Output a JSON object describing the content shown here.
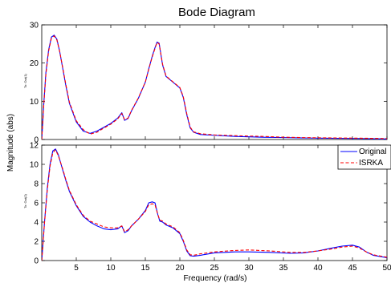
{
  "chart_data": {
    "type": "line",
    "title": "Bode Diagram",
    "xlabel": "Frequency  (rad/s)",
    "ylabel": "Magnitude (abs)",
    "xlim": [
      0,
      50
    ],
    "x_ticks": [
      "5",
      "10",
      "15",
      "20",
      "25",
      "30",
      "35",
      "40",
      "45",
      "50"
    ],
    "grid": false,
    "legend_position": "top-right of lower panel",
    "legend": [
      {
        "name": "Original",
        "color": "#0000ff",
        "style": "solid"
      },
      {
        "name": "ISRKA",
        "color": "#ff0000",
        "style": "dashed"
      }
    ],
    "panels": [
      {
        "panel_label": "To: Out(1)",
        "ylim": [
          0,
          30
        ],
        "y_ticks": [
          "0",
          "10",
          "20",
          "30"
        ],
        "series": [
          {
            "name": "Original",
            "x": [
              0,
              0.3,
              0.6,
              1.0,
              1.4,
              1.8,
              2.2,
              2.6,
              3.0,
              3.5,
              4.0,
              5.0,
              6.0,
              7.0,
              8.0,
              9.0,
              10.0,
              11.0,
              11.6,
              12.0,
              12.5,
              13.0,
              14.0,
              15.0,
              15.5,
              16.0,
              16.4,
              16.7,
              17.0,
              17.5,
              18.0,
              19.0,
              20.0,
              20.5,
              21.0,
              21.5,
              22.0,
              23.0,
              25.0,
              28.0,
              30.0,
              32.0,
              35.0,
              38.0,
              40.0,
              43.0,
              46.0,
              48.0,
              50.0
            ],
            "y": [
              0,
              9.5,
              17.5,
              23.5,
              26.8,
              27.3,
              26.2,
              23.0,
              19.0,
              14.0,
              9.5,
              4.6,
              2.2,
              1.6,
              2.2,
              3.2,
              4.2,
              5.6,
              7.0,
              5.0,
              5.5,
              7.5,
              10.8,
              15.0,
              18.5,
              21.8,
              24.0,
              25.5,
              25.2,
              19.5,
              16.5,
              15.0,
              13.5,
              11.0,
              6.5,
              3.0,
              1.9,
              1.3,
              1.1,
              0.8,
              0.7,
              0.6,
              0.5,
              0.4,
              0.35,
              0.3,
              0.25,
              0.2,
              0.15
            ]
          },
          {
            "name": "ISRKA",
            "x": [
              0,
              0.3,
              0.6,
              1.0,
              1.4,
              1.8,
              2.2,
              2.6,
              3.0,
              3.5,
              4.0,
              5.0,
              6.0,
              7.0,
              8.0,
              9.0,
              10.0,
              11.0,
              11.6,
              12.0,
              12.5,
              13.0,
              14.0,
              15.0,
              15.5,
              16.0,
              16.4,
              16.7,
              17.0,
              17.5,
              18.0,
              19.0,
              20.0,
              20.5,
              21.0,
              21.5,
              22.0,
              23.0,
              25.0,
              28.0,
              30.0,
              32.0,
              35.0,
              38.0,
              40.0,
              43.0,
              46.0,
              48.0,
              50.0
            ],
            "y": [
              0,
              9.2,
              17.0,
              23.2,
              26.5,
              27.1,
              26.0,
              23.0,
              19.2,
              14.3,
              9.8,
              4.9,
              2.6,
              1.4,
              1.9,
              3.0,
              4.0,
              5.4,
              6.8,
              5.2,
              5.6,
              7.6,
              10.9,
              15.0,
              18.4,
              21.6,
              23.8,
              25.4,
              25.0,
              19.7,
              16.6,
              15.1,
              13.6,
              11.2,
              6.8,
              3.2,
              2.0,
              1.5,
              1.2,
              1.0,
              0.9,
              0.8,
              0.6,
              0.5,
              0.45,
              0.4,
              0.35,
              0.3,
              0.25
            ]
          }
        ]
      },
      {
        "panel_label": "To: Out(2)",
        "ylim": [
          0,
          12
        ],
        "y_ticks": [
          "0",
          "2",
          "4",
          "6",
          "8",
          "10",
          "12"
        ],
        "series": [
          {
            "name": "Original",
            "x": [
              0,
              0.4,
              0.8,
              1.2,
              1.6,
              2.0,
              2.4,
              3.0,
              3.5,
              4.0,
              5.0,
              6.0,
              7.0,
              8.0,
              9.0,
              10.0,
              11.0,
              11.6,
              12.0,
              12.5,
              13.0,
              14.0,
              15.0,
              15.5,
              16.0,
              16.4,
              16.8,
              17.1,
              17.5,
              18.0,
              19.0,
              20.0,
              20.5,
              21.0,
              21.5,
              22.0,
              23.0,
              25.0,
              28.0,
              30.0,
              33.0,
              36.0,
              38.0,
              40.0,
              42.0,
              43.5,
              45.0,
              46.0,
              47.0,
              48.0,
              50.0
            ],
            "y": [
              0,
              4.0,
              7.5,
              10.0,
              11.4,
              11.6,
              11.0,
              9.5,
              8.3,
              7.2,
              5.7,
              4.6,
              4.0,
              3.6,
              3.3,
              3.2,
              3.3,
              3.6,
              2.9,
              3.1,
              3.6,
              4.3,
              5.2,
              6.0,
              6.1,
              6.0,
              4.8,
              4.1,
              4.0,
              3.7,
              3.4,
              2.8,
              2.0,
              1.0,
              0.5,
              0.45,
              0.55,
              0.8,
              0.9,
              0.9,
              0.85,
              0.75,
              0.8,
              1.0,
              1.3,
              1.5,
              1.6,
              1.4,
              0.9,
              0.55,
              0.3
            ]
          },
          {
            "name": "ISRKA",
            "x": [
              0,
              0.4,
              0.8,
              1.2,
              1.6,
              2.0,
              2.4,
              3.0,
              3.5,
              4.0,
              5.0,
              6.0,
              7.0,
              8.0,
              9.0,
              10.0,
              11.0,
              11.6,
              12.0,
              12.5,
              13.0,
              14.0,
              15.0,
              15.5,
              16.0,
              16.4,
              16.8,
              17.1,
              17.5,
              18.0,
              19.0,
              20.0,
              20.5,
              21.0,
              21.5,
              22.0,
              23.0,
              25.0,
              28.0,
              30.0,
              33.0,
              36.0,
              38.0,
              40.0,
              42.0,
              43.5,
              45.0,
              46.0,
              47.0,
              48.0,
              50.0
            ],
            "y": [
              0,
              3.9,
              7.3,
              9.8,
              11.2,
              11.5,
              10.9,
              9.6,
              8.4,
              7.3,
              5.8,
              4.7,
              4.1,
              3.8,
              3.5,
              3.4,
              3.4,
              3.6,
              3.0,
              3.2,
              3.6,
              4.3,
              5.1,
              5.8,
              5.9,
              5.8,
              4.8,
              4.2,
              4.1,
              3.8,
              3.5,
              2.9,
              2.1,
              1.1,
              0.6,
              0.55,
              0.7,
              0.9,
              1.05,
              1.1,
              1.0,
              0.85,
              0.85,
              1.0,
              1.2,
              1.4,
              1.5,
              1.3,
              0.9,
              0.6,
              0.35
            ]
          }
        ]
      }
    ]
  }
}
